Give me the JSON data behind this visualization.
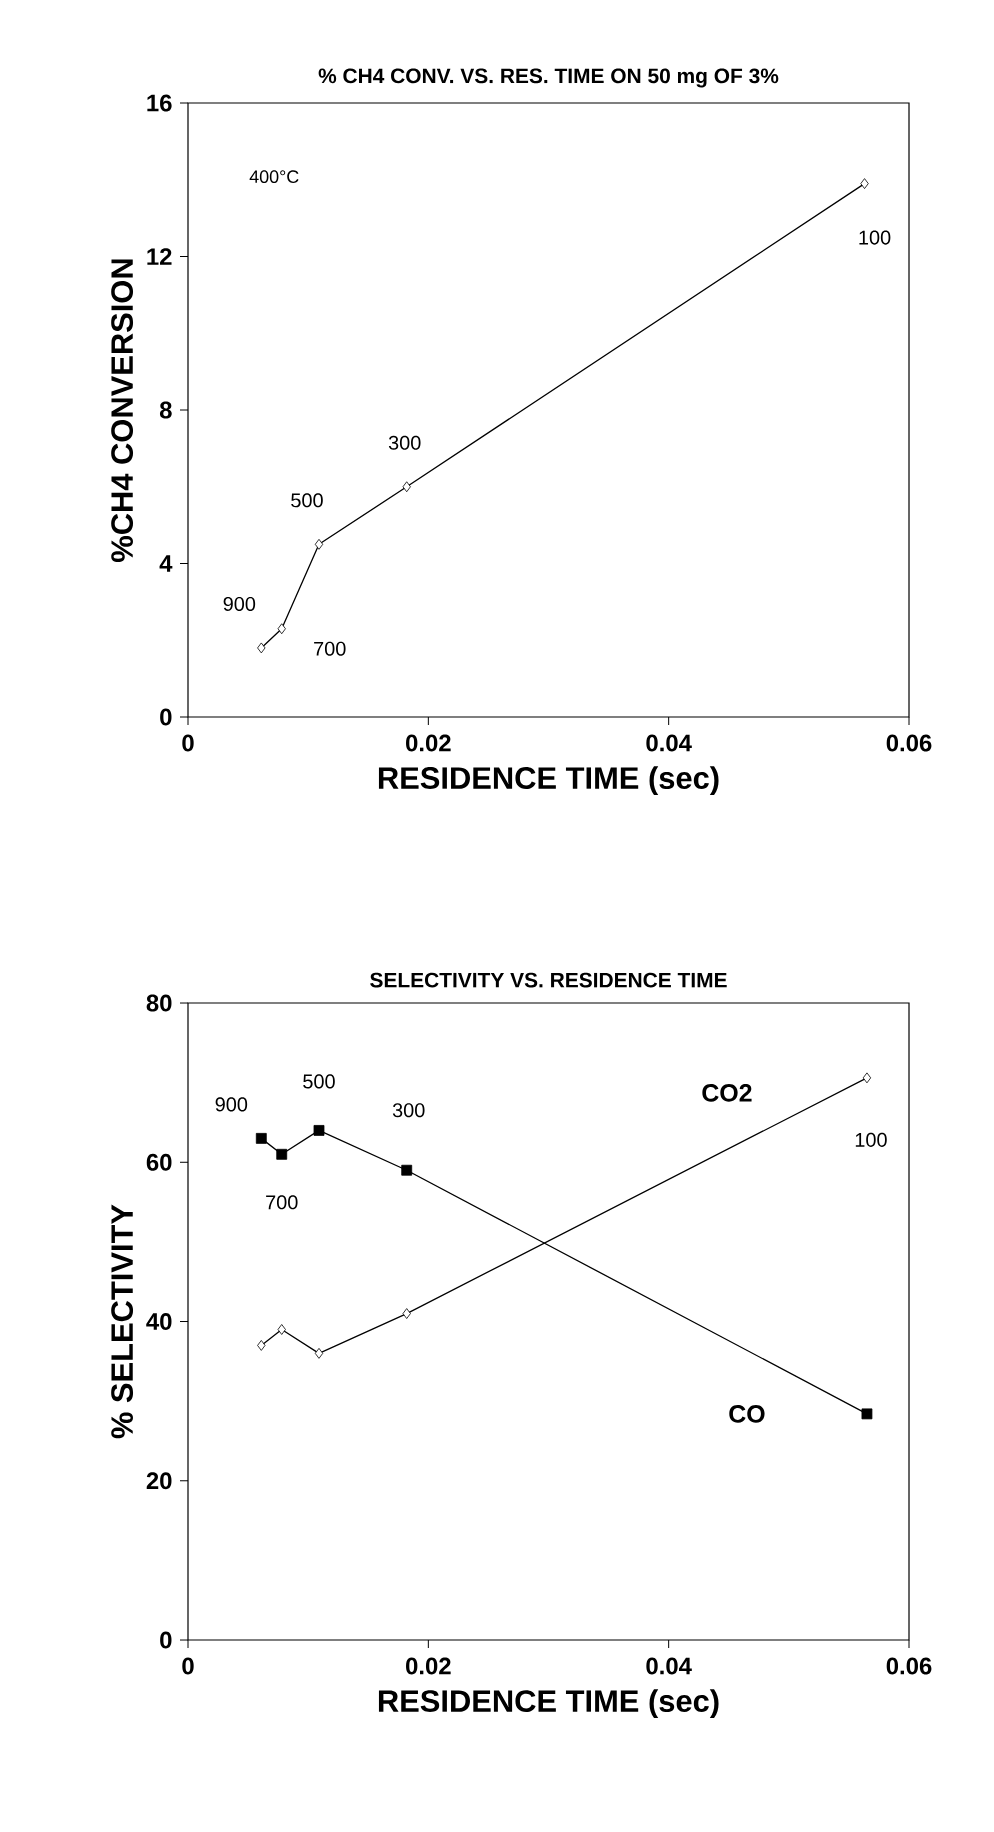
{
  "chart_data": [
    {
      "type": "line",
      "title": "% CH4 CONV. VS. RES. TIME ON 50 mg OF 3%",
      "xlabel": "RESIDENCE TIME (sec)",
      "ylabel": "%CH4 CONVERSION",
      "xlim": [
        0,
        0.06
      ],
      "xticks": [
        0,
        0.02,
        0.04,
        0.06
      ],
      "ylim": [
        0,
        16
      ],
      "yticks": [
        0,
        4,
        8,
        12,
        16
      ],
      "series": [
        {
          "color": "#000000",
          "marker": "diamond",
          "x": [
            0.0061,
            0.0078,
            0.0109,
            0.0182,
            0.0563
          ],
          "values": [
            1.8,
            2.3,
            4.5,
            6.0,
            13.9
          ]
        }
      ],
      "annotations": [
        "400°C",
        {
          "text": "900",
          "x": 0.0061,
          "y": 1.8
        },
        {
          "text": "700",
          "x": 0.0078,
          "y": 2.3
        },
        {
          "text": "500",
          "x": 0.0109,
          "y": 4.5
        },
        {
          "text": "300",
          "x": 0.0182,
          "y": 6.0
        },
        {
          "text": "100",
          "x": 0.0563,
          "y": 13.9
        }
      ]
    },
    {
      "type": "line",
      "title": "SELECTIVITY VS. RESIDENCE TIME",
      "xlabel": "RESIDENCE TIME (sec)",
      "ylabel": "% SELECTIVITY",
      "xlim": [
        0,
        0.06
      ],
      "xticks": [
        0,
        0.02,
        0.04,
        0.06
      ],
      "ylim": [
        0,
        80
      ],
      "yticks": [
        0,
        20,
        40,
        60,
        80
      ],
      "series": [
        {
          "name": "CO",
          "color": "#000000",
          "marker": "square",
          "x": [
            0.0061,
            0.0078,
            0.0109,
            0.0182,
            0.0565
          ],
          "values": [
            63,
            61,
            64,
            59,
            28.4
          ]
        },
        {
          "name": "CO2",
          "color": "#000000",
          "marker": "diamond",
          "x": [
            0.0061,
            0.0078,
            0.0109,
            0.0182,
            0.0565
          ],
          "values": [
            37,
            39,
            36,
            41,
            70.6
          ]
        }
      ],
      "annotations": [
        {
          "text": "900",
          "x": 0.0061,
          "y": 63
        },
        {
          "text": "700",
          "x": 0.0078,
          "y": 61
        },
        {
          "text": "500",
          "x": 0.0109,
          "y": 64
        },
        {
          "text": "300",
          "x": 0.0182,
          "y": 59
        },
        {
          "text": "100",
          "x": 0.0565,
          "y": 70.6
        }
      ]
    }
  ]
}
